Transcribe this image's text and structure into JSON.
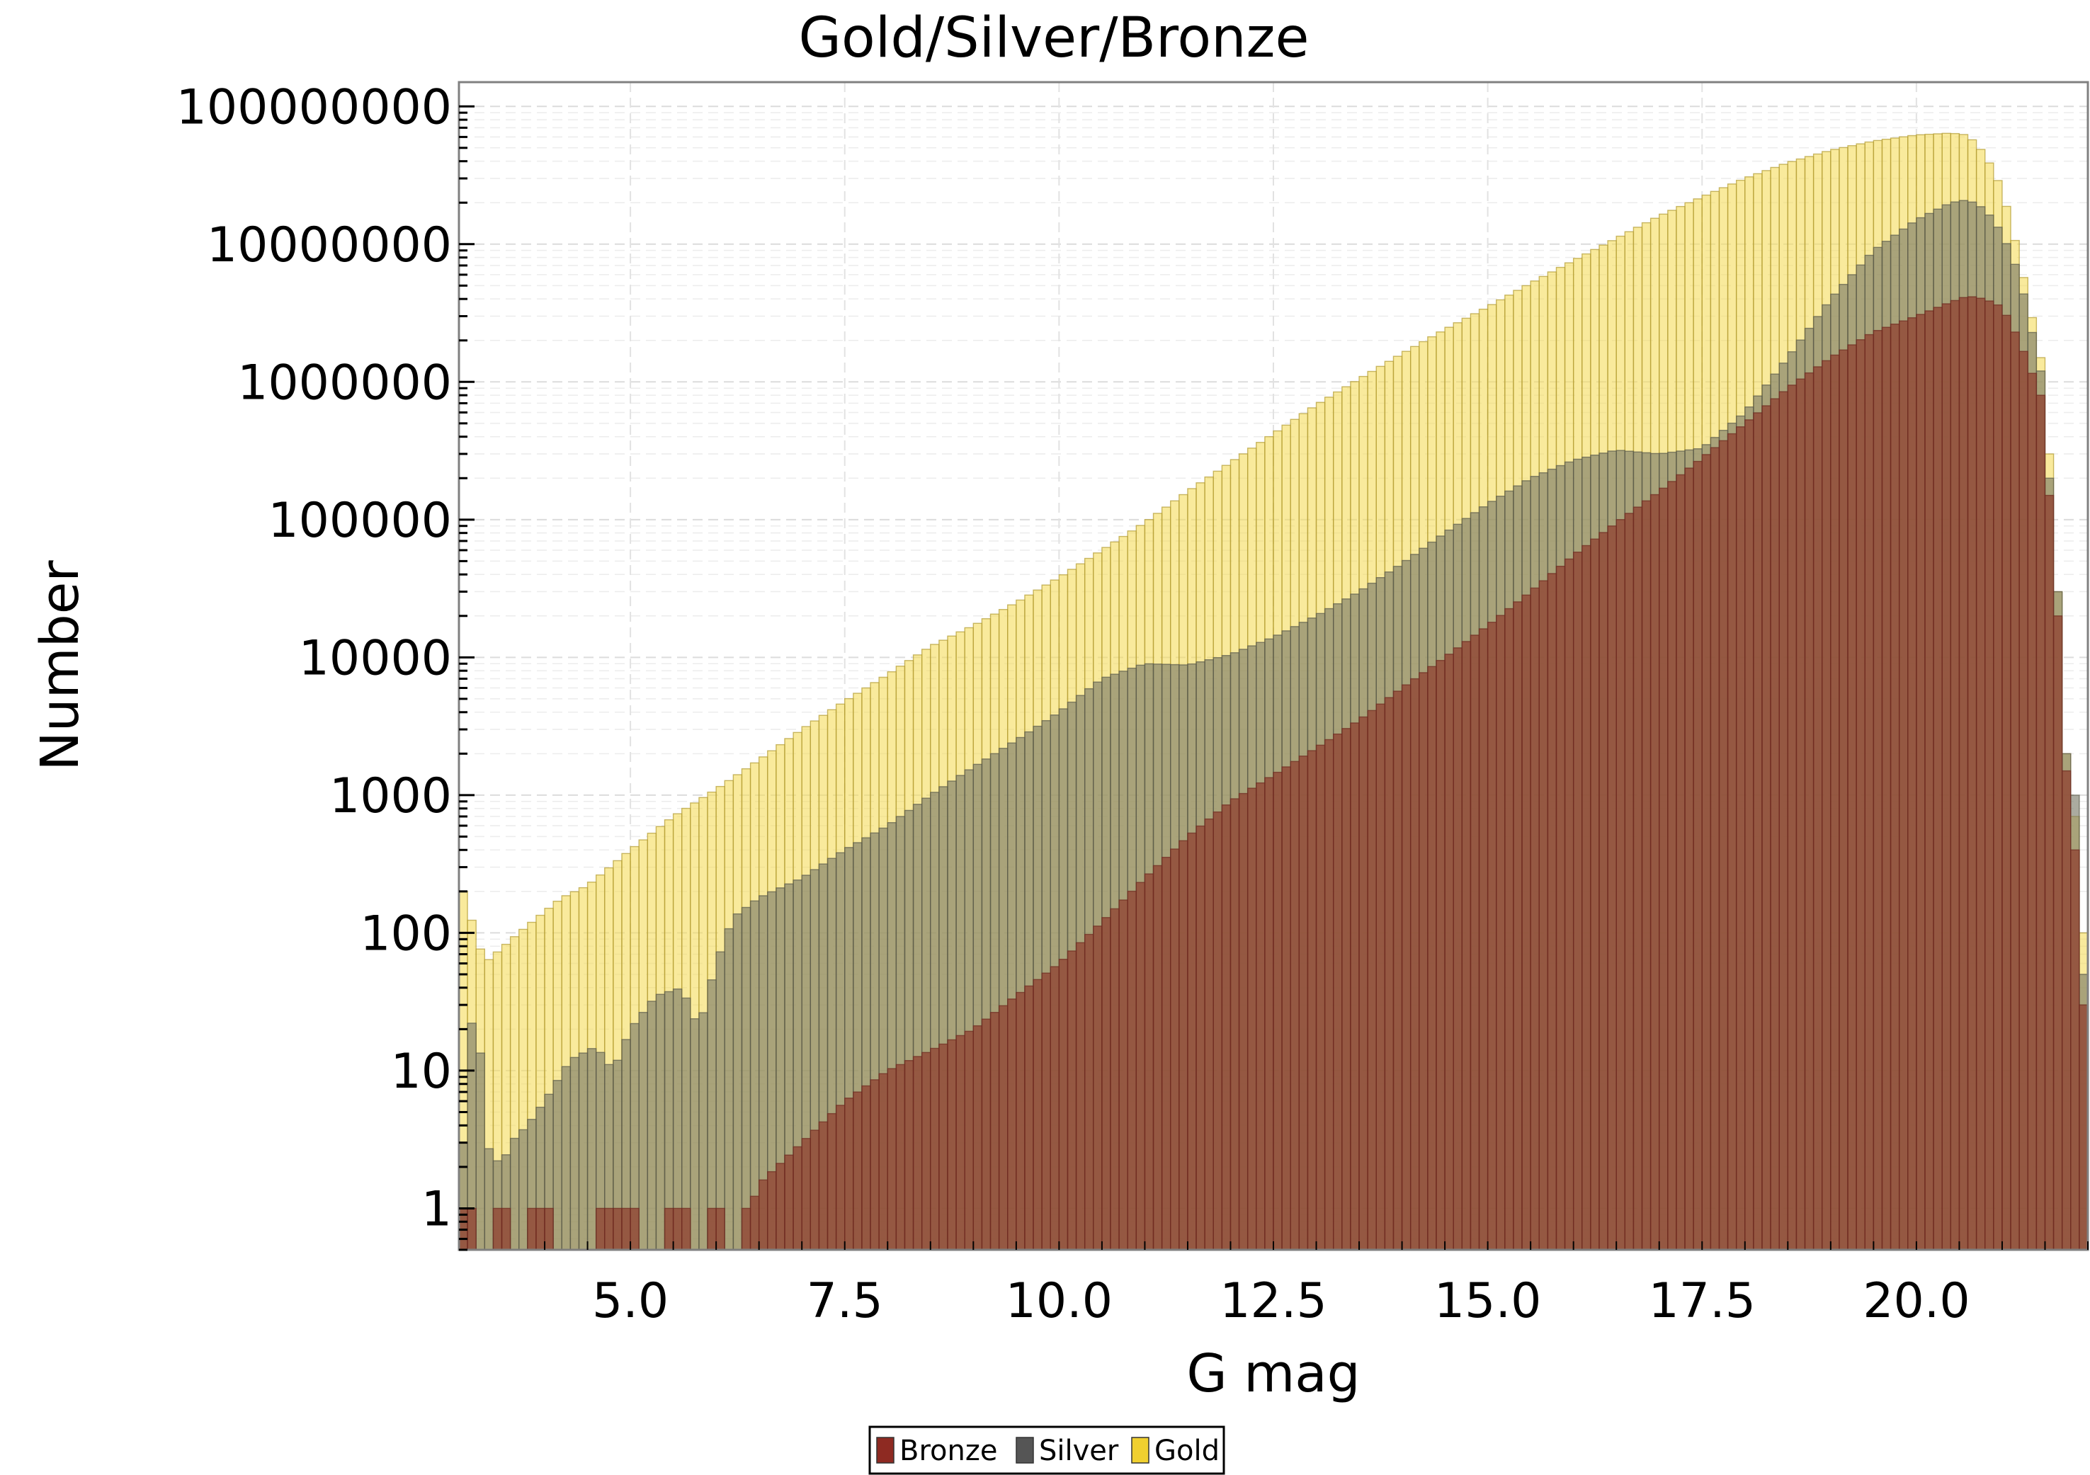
{
  "chart_data": {
    "type": "bar",
    "title": "Gold/Silver/Bronze",
    "xlabel": "G mag",
    "ylabel": "Number",
    "x_scale": "linear",
    "y_scale": "log",
    "xlim": [
      3.0,
      22.0
    ],
    "ylim": [
      0.5,
      150000000
    ],
    "x_ticks": [
      "5.0",
      "7.5",
      "10.0",
      "12.5",
      "15.0",
      "17.5",
      "20.0"
    ],
    "y_ticks": [
      "1",
      "10",
      "100",
      "1000",
      "10000",
      "100000",
      "1000000",
      "10000000",
      "100000000"
    ],
    "grid": true,
    "legend_position": "bottom-center",
    "bin_start": 3.0,
    "bin_width": 0.1,
    "series": [
      {
        "name": "Gold",
        "color": "#f5dc5a",
        "anchors": [
          [
            3.05,
            200
          ],
          [
            3.3,
            60
          ],
          [
            3.7,
            100
          ],
          [
            4.2,
            180
          ],
          [
            4.5,
            220
          ],
          [
            5.0,
            400
          ],
          [
            5.5,
            700
          ],
          [
            6.0,
            1100
          ],
          [
            6.5,
            1800
          ],
          [
            7.0,
            3000
          ],
          [
            7.5,
            4800
          ],
          [
            8.0,
            7500
          ],
          [
            8.5,
            12000
          ],
          [
            9.0,
            17000
          ],
          [
            9.5,
            25000
          ],
          [
            10.0,
            38000
          ],
          [
            10.5,
            60000
          ],
          [
            11.0,
            95000
          ],
          [
            11.5,
            160000
          ],
          [
            12.0,
            260000
          ],
          [
            12.5,
            420000
          ],
          [
            13.0,
            680000
          ],
          [
            13.5,
            1050000
          ],
          [
            14.0,
            1600000
          ],
          [
            14.5,
            2400000
          ],
          [
            15.0,
            3500000
          ],
          [
            15.5,
            5200000
          ],
          [
            16.0,
            7600000
          ],
          [
            16.5,
            11000000
          ],
          [
            17.0,
            16000000
          ],
          [
            17.5,
            22000000
          ],
          [
            18.0,
            30000000
          ],
          [
            18.5,
            39000000
          ],
          [
            19.0,
            48000000
          ],
          [
            19.5,
            56000000
          ],
          [
            20.0,
            62000000
          ],
          [
            20.4,
            64000000
          ],
          [
            20.6,
            62000000
          ],
          [
            20.8,
            45000000
          ],
          [
            21.0,
            25000000
          ],
          [
            21.2,
            8000000
          ],
          [
            21.45,
            1500000
          ],
          [
            21.55,
            300000
          ],
          [
            21.65,
            30000
          ],
          [
            21.75,
            2000
          ],
          [
            21.85,
            700
          ],
          [
            21.95,
            100
          ]
        ]
      },
      {
        "name": "Silver",
        "color": "#777766",
        "anchors": [
          [
            3.05,
            3
          ],
          [
            3.2,
            60
          ],
          [
            3.3,
            3
          ],
          [
            3.5,
            2
          ],
          [
            3.6,
            3
          ],
          [
            3.8,
            4
          ],
          [
            4.0,
            6
          ],
          [
            4.3,
            12
          ],
          [
            4.6,
            15
          ],
          [
            4.8,
            10
          ],
          [
            5.0,
            20
          ],
          [
            5.3,
            35
          ],
          [
            5.6,
            40
          ],
          [
            5.8,
            20
          ],
          [
            6.0,
            60
          ],
          [
            6.2,
            130
          ],
          [
            6.5,
            180
          ],
          [
            7.0,
            250
          ],
          [
            7.5,
            400
          ],
          [
            8.0,
            600
          ],
          [
            8.5,
            1000
          ],
          [
            9.0,
            1600
          ],
          [
            9.5,
            2500
          ],
          [
            10.0,
            4000
          ],
          [
            10.5,
            7000
          ],
          [
            11.0,
            9000
          ],
          [
            11.5,
            8800
          ],
          [
            12.0,
            10500
          ],
          [
            12.5,
            14000
          ],
          [
            13.0,
            20000
          ],
          [
            13.5,
            30000
          ],
          [
            14.0,
            48000
          ],
          [
            14.5,
            80000
          ],
          [
            15.0,
            130000
          ],
          [
            15.5,
            200000
          ],
          [
            16.0,
            270000
          ],
          [
            16.5,
            320000
          ],
          [
            17.0,
            300000
          ],
          [
            17.5,
            330000
          ],
          [
            18.0,
            600000
          ],
          [
            18.5,
            1500000
          ],
          [
            19.0,
            4000000
          ],
          [
            19.5,
            9000000
          ],
          [
            20.0,
            15000000
          ],
          [
            20.4,
            20000000
          ],
          [
            20.6,
            21000000
          ],
          [
            20.8,
            18000000
          ],
          [
            21.0,
            12000000
          ],
          [
            21.2,
            6000000
          ],
          [
            21.45,
            1200000
          ],
          [
            21.55,
            200000
          ],
          [
            21.65,
            30000
          ],
          [
            21.75,
            2000
          ],
          [
            21.85,
            1000
          ],
          [
            21.95,
            50
          ]
        ]
      },
      {
        "name": "Bronze",
        "color": "#8e3b2d",
        "anchors": [
          [
            3.05,
            1
          ],
          [
            3.3,
            0
          ],
          [
            3.5,
            1
          ],
          [
            3.6,
            0
          ],
          [
            4.0,
            1
          ],
          [
            4.2,
            0
          ],
          [
            5.0,
            1
          ],
          [
            5.3,
            0
          ],
          [
            5.6,
            1
          ],
          [
            5.8,
            0
          ],
          [
            6.0,
            1
          ],
          [
            6.2,
            0
          ],
          [
            6.4,
            1
          ],
          [
            6.5,
            1.5
          ],
          [
            7.0,
            3
          ],
          [
            7.5,
            6
          ],
          [
            8.0,
            10
          ],
          [
            8.5,
            14
          ],
          [
            9.0,
            20
          ],
          [
            9.5,
            35
          ],
          [
            10.0,
            60
          ],
          [
            10.5,
            120
          ],
          [
            11.0,
            250
          ],
          [
            11.5,
            500
          ],
          [
            12.0,
            900
          ],
          [
            12.5,
            1400
          ],
          [
            13.0,
            2200
          ],
          [
            13.5,
            3500
          ],
          [
            14.0,
            6000
          ],
          [
            14.5,
            10000
          ],
          [
            15.0,
            17000
          ],
          [
            15.5,
            30000
          ],
          [
            16.0,
            55000
          ],
          [
            16.5,
            95000
          ],
          [
            17.0,
            160000
          ],
          [
            17.5,
            280000
          ],
          [
            18.0,
            500000
          ],
          [
            18.5,
            900000
          ],
          [
            19.0,
            1500000
          ],
          [
            19.5,
            2300000
          ],
          [
            20.0,
            3000000
          ],
          [
            20.4,
            3800000
          ],
          [
            20.6,
            4200000
          ],
          [
            20.8,
            4000000
          ],
          [
            21.0,
            3500000
          ],
          [
            21.2,
            2000000
          ],
          [
            21.45,
            800000
          ],
          [
            21.55,
            150000
          ],
          [
            21.65,
            20000
          ],
          [
            21.75,
            1500
          ],
          [
            21.85,
            400
          ],
          [
            21.95,
            30
          ]
        ]
      }
    ],
    "legend": [
      {
        "label": "Bronze",
        "color": "#8e2a22"
      },
      {
        "label": "Silver",
        "color": "#555555"
      },
      {
        "label": "Gold",
        "color": "#f0d030"
      }
    ]
  }
}
